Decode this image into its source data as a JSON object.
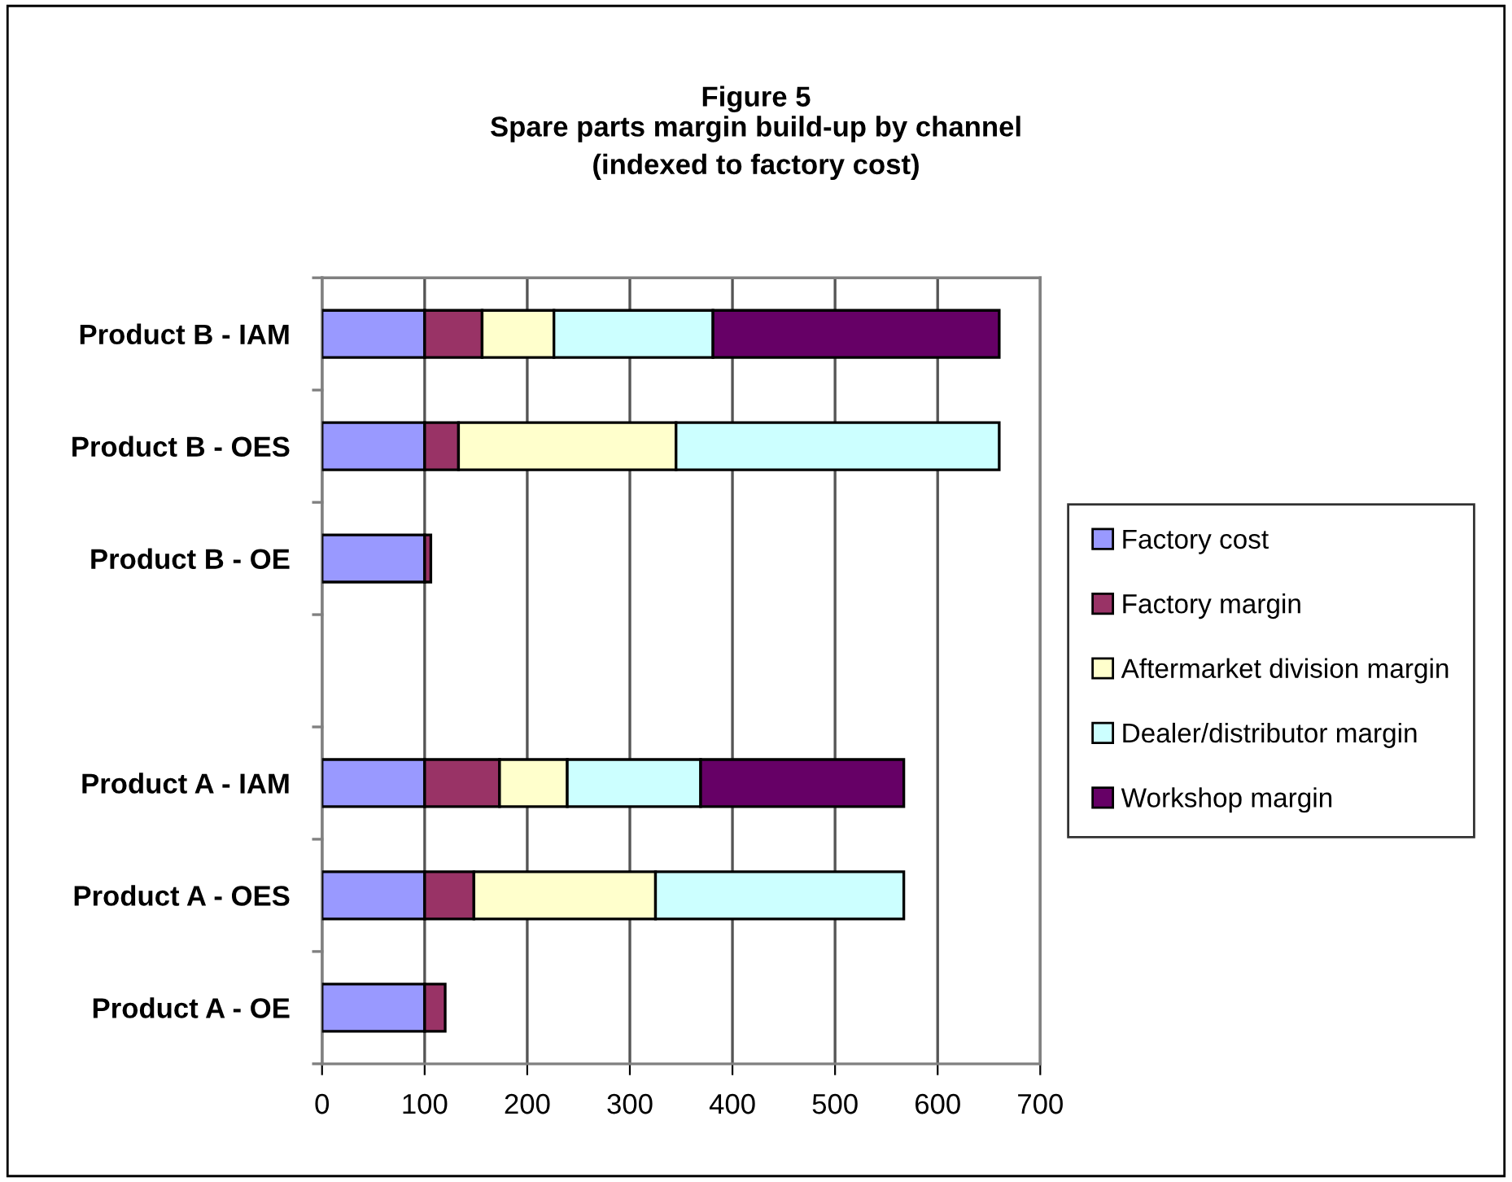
{
  "chart_data": {
    "type": "bar",
    "orientation": "horizontal",
    "stacked": true,
    "title": "Figure 5",
    "subtitle": "Spare parts margin build-up by channel\n(indexed to factory cost)",
    "categories": [
      "Product B - IAM",
      "Product B - OES",
      "Product B - OE",
      null,
      "Product A - IAM",
      "Product A - OES",
      "Product A - OE"
    ],
    "series": [
      {
        "name": "Factory cost",
        "color": "#9999ff",
        "values": [
          100,
          100,
          100,
          null,
          100,
          100,
          100
        ]
      },
      {
        "name": "Factory margin",
        "color": "#993366",
        "values": [
          56,
          33,
          6,
          null,
          73,
          48,
          20
        ]
      },
      {
        "name": "Aftermarket division margin",
        "color": "#ffffcc",
        "values": [
          70,
          212,
          null,
          null,
          66,
          177,
          null
        ]
      },
      {
        "name": "Dealer/distributor margin",
        "color": "#ccffff",
        "values": [
          155,
          315,
          null,
          null,
          130,
          242,
          null
        ]
      },
      {
        "name": "Workshop margin",
        "color": "#660066",
        "values": [
          279,
          null,
          null,
          null,
          198,
          null,
          null
        ]
      }
    ],
    "xlim": [
      0,
      700
    ],
    "xticks": [
      0,
      100,
      200,
      300,
      400,
      500,
      600,
      700
    ],
    "grid": "x",
    "legend": "right"
  }
}
